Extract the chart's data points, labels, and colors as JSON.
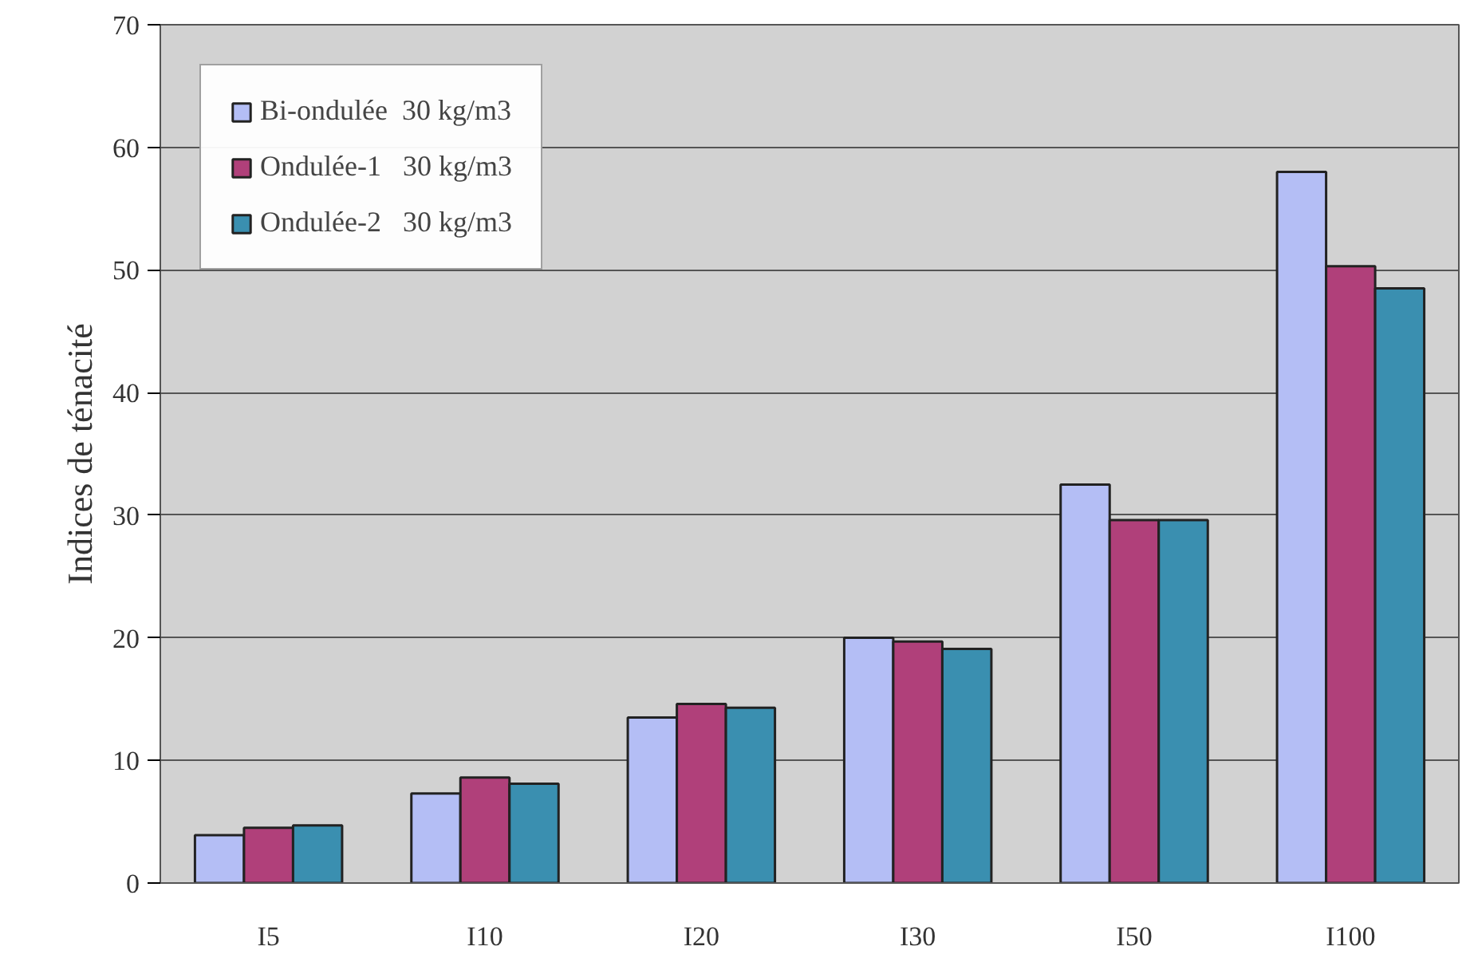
{
  "chart_data": {
    "type": "bar",
    "ylabel": "Indices de ténacité",
    "categories": [
      "I5",
      "I10",
      "I20",
      "I30",
      "I50",
      "I100"
    ],
    "series": [
      {
        "name": "Bi-ondulée  30 kg/m3",
        "color": "#b4bef5",
        "values": [
          3.9,
          7.3,
          13.5,
          20.0,
          32.5,
          58.0
        ]
      },
      {
        "name": "Ondulée-1   30 kg/m3",
        "color": "#b0407a",
        "values": [
          4.5,
          8.6,
          14.6,
          19.7,
          29.6,
          50.3
        ]
      },
      {
        "name": "Ondulée-2   30 kg/m3",
        "color": "#3a8fb0",
        "values": [
          4.7,
          8.1,
          14.3,
          19.1,
          29.6,
          48.5
        ]
      }
    ],
    "ylim": [
      0,
      70
    ],
    "yticks": [
      0,
      10,
      20,
      30,
      40,
      50,
      60,
      70
    ],
    "grid": "y",
    "legend": "top left"
  }
}
